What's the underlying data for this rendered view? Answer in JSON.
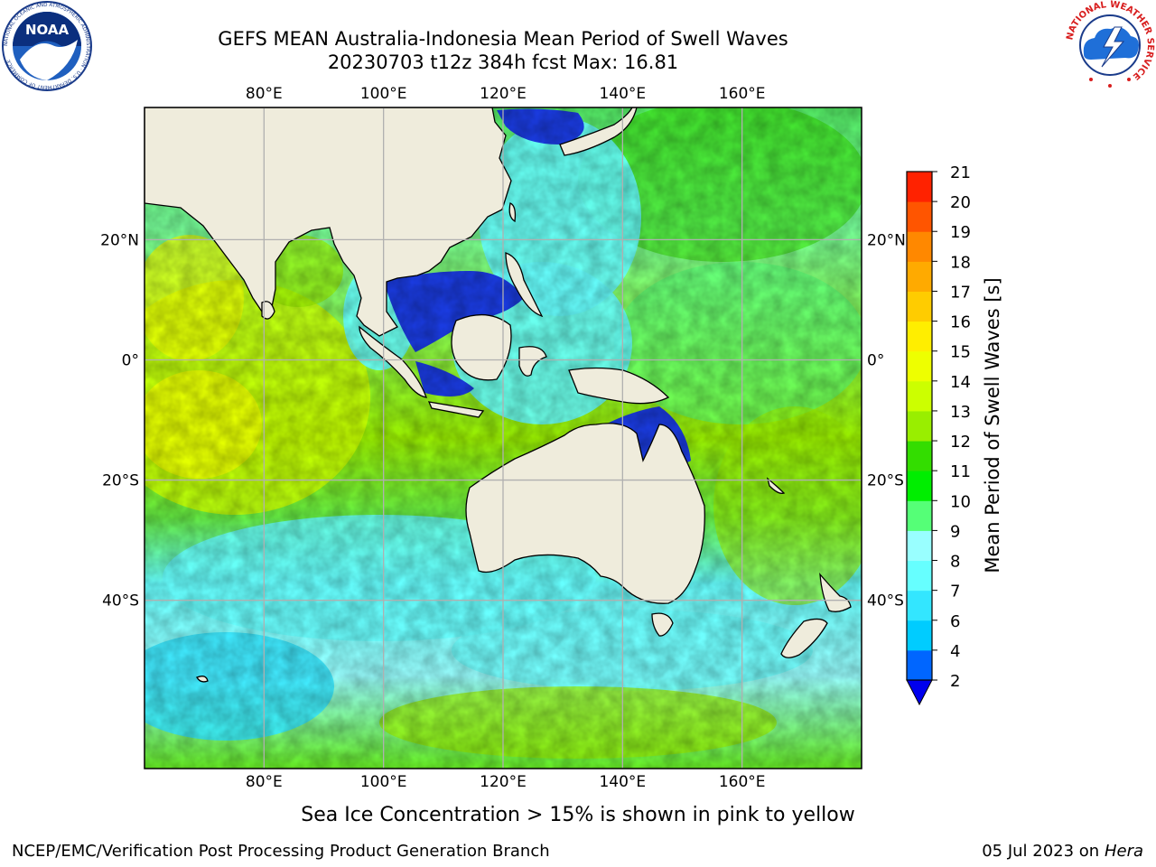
{
  "title": {
    "line1": "GEFS MEAN Australia-Indonesia Mean Period of Swell Waves",
    "line2": "20230703 t12z 384h fcst   Max: 16.81"
  },
  "map": {
    "lon_range": [
      60,
      180
    ],
    "lat_range": [
      -68,
      42
    ],
    "top_lon_labels": [
      "80°E",
      "100°E",
      "120°E",
      "140°E",
      "160°E"
    ],
    "bottom_lon_labels": [
      "80°E",
      "100°E",
      "120°E",
      "140°E",
      "160°E"
    ],
    "left_lat_labels": [
      "20°N",
      "0°",
      "20°S",
      "40°S"
    ],
    "right_lat_labels": [
      "20°N",
      "0°",
      "20°S",
      "40°S"
    ],
    "land_color": "#efecdc",
    "grid_color": "#b0b0b0"
  },
  "colorbar": {
    "label": "Mean Period of Swell Waves [s]",
    "ticks": [
      "2",
      "4",
      "6",
      "7",
      "8",
      "9",
      "10",
      "11",
      "12",
      "13",
      "14",
      "15",
      "16",
      "17",
      "18",
      "19",
      "20",
      "21"
    ],
    "colors": [
      "#0066ff",
      "#00ccff",
      "#33e6ff",
      "#66ffff",
      "#99ffff",
      "#55ff77",
      "#00ee00",
      "#33dd00",
      "#99ee00",
      "#ccff00",
      "#eeff00",
      "#ffee00",
      "#ffcc00",
      "#ffaa00",
      "#ff8800",
      "#ff5500",
      "#ff2200",
      "#ff0000"
    ],
    "extend_color": "#0000ee"
  },
  "caption": "Sea Ice Concentration > 15% is shown in pink to yellow",
  "footer": {
    "left": "NCEP/EMC/Verification Post Processing Product Generation Branch",
    "right_date": "05 Jul 2023 on ",
    "right_host": "Hera"
  },
  "logos": {
    "noaa_text": "NOAA",
    "noaa_ring": "NATIONAL OCEANIC AND ATMOSPHERIC ADMINISTRATION · U.S. DEPARTMENT OF COMMERCE",
    "nws_ring": "NATIONAL WEATHER SERVICE"
  }
}
